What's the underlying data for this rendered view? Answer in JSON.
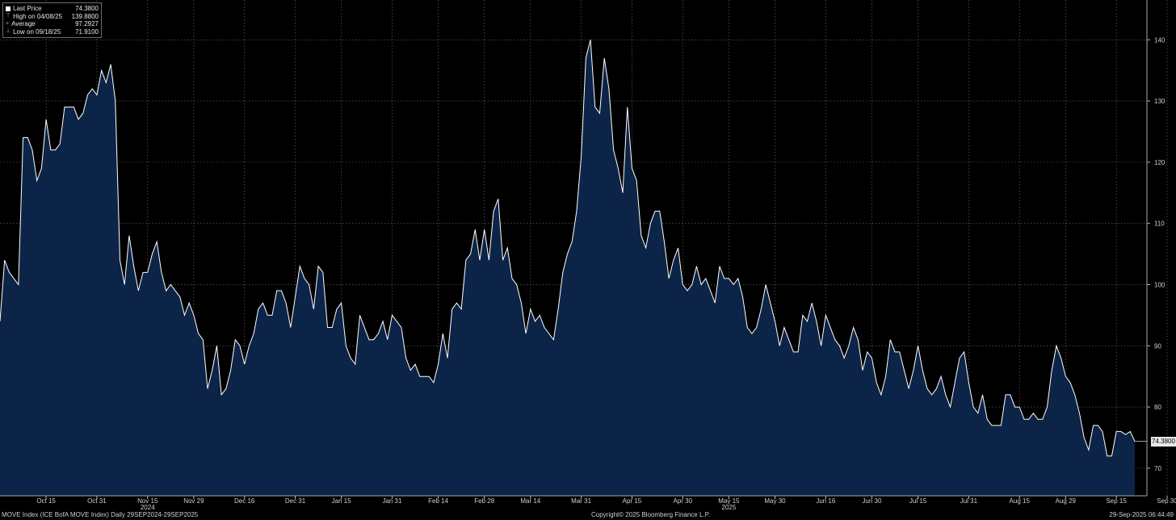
{
  "legend": {
    "last_price_label": "Last Price",
    "last_price_value": "74.3800",
    "high_label": "High on 04/08/25",
    "high_value": "139.8800",
    "average_label": "Average",
    "average_value": "97.2927",
    "low_label": "Low on 09/18/25",
    "low_value": "71.9100"
  },
  "footer": {
    "left": "MOVE Index (ICE BofA MOVE Index)  Daily 29SEP2024-29SEP2025",
    "center": "Copyright© 2025 Bloomberg Finance L.P.",
    "right": "29-Sep-2025 06:44:49"
  },
  "last_value_tag": "74.3800",
  "colors": {
    "background": "#000000",
    "area_fill": "#0c2447",
    "line": "#ffffff",
    "grid": "#6e6e6e",
    "text": "#d8d8d8"
  },
  "chart_data": {
    "type": "area",
    "series": [
      {
        "values": [
          94.0,
          104.0,
          102.0,
          101.0,
          100.0,
          124.0,
          124.0,
          122.0,
          117.0,
          119.0,
          127.0,
          122.0,
          122.0,
          123.0,
          129.0,
          129.0,
          129.0,
          127.0,
          128.0,
          131.0,
          132.0,
          131.0,
          135.0,
          133.0,
          136.0,
          130.0,
          104.0,
          100.0,
          108.0,
          103.0,
          99.0,
          102.0,
          102.0,
          105.0,
          107.0,
          102.0,
          99.0,
          100.0,
          99.0,
          98.0,
          95.0,
          97.0,
          95.0,
          92.0,
          91.0,
          83.0,
          86.0,
          90.0,
          82.0,
          83.0,
          86.0,
          91.0,
          90.0,
          87.0,
          90.0,
          92.0,
          96.0,
          97.0,
          95.0,
          95.0,
          99.0,
          99.0,
          97.0,
          93.0,
          98.0,
          103.0,
          101.0,
          100.0,
          96.0,
          103.0,
          102.0,
          93.0,
          93.0,
          96.0,
          97.0,
          90.0,
          88.0,
          87.0,
          95.0,
          93.0,
          91.0,
          91.0,
          92.0,
          94.0,
          91.0,
          95.0,
          94.0,
          93.0,
          88.0,
          86.0,
          87.0,
          85.0,
          85.0,
          85.0,
          84.0,
          87.0,
          92.0,
          88.0,
          96.0,
          97.0,
          96.0,
          104.0,
          105.0,
          109.0,
          104.0,
          109.0,
          104.0,
          112.0,
          114.0,
          104.0,
          106.0,
          101.0,
          100.0,
          97.0,
          92.0,
          96.0,
          94.0,
          95.0,
          93.0,
          92.0,
          91.0,
          96.0,
          102.0,
          105.0,
          107.0,
          112.0,
          121.0,
          137.0,
          140.0,
          129.0,
          128.0,
          137.0,
          132.0,
          122.0,
          119.0,
          115.0,
          129.0,
          119.0,
          117.0,
          108.0,
          106.0,
          110.0,
          112.0,
          112.0,
          107.0,
          101.0,
          104.0,
          106.0,
          100.0,
          99.0,
          100.0,
          103.0,
          100.0,
          101.0,
          99.0,
          97.0,
          103.0,
          101.0,
          101.0,
          100.0,
          101.0,
          98.0,
          93.0,
          92.0,
          93.0,
          96.0,
          100.0,
          97.0,
          94.0,
          90.0,
          93.0,
          91.0,
          89.0,
          89.0,
          95.0,
          94.0,
          97.0,
          94.0,
          90.0,
          95.0,
          93.0,
          91.0,
          90.0,
          88.0,
          90.0,
          93.0,
          91.0,
          86.0,
          89.0,
          88.0,
          84.0,
          82.0,
          85.0,
          91.0,
          89.0,
          89.0,
          86.0,
          83.0,
          86.0,
          90.0,
          86.0,
          83.0,
          82.0,
          83.0,
          85.0,
          82.0,
          80.0,
          84.0,
          88.0,
          89.0,
          84.0,
          80.0,
          79.0,
          82.0,
          78.0,
          77.0,
          77.0,
          77.0,
          82.0,
          82.0,
          80.0,
          80.0,
          78.0,
          78.0,
          79.0,
          78.0,
          78.0,
          80.0,
          86.0,
          90.0,
          88.0,
          85.0,
          84.0,
          82.0,
          79.0,
          75.0,
          73.0,
          77.0,
          77.0,
          76.0,
          72.0,
          72.0,
          76.0,
          76.0,
          75.5,
          76.0,
          74.38
        ]
      }
    ],
    "x_tick_labels": [
      "Oct 15",
      "Oct 31",
      "Nov 15",
      "Nov 29",
      "Dec 16",
      "Dec 31",
      "Jan 15",
      "Jan 31",
      "Feb 14",
      "Feb 28",
      "Mar 14",
      "Mar 31",
      "Apr 15",
      "Apr 30",
      "May 15",
      "May 30",
      "Jun 16",
      "Jun 30",
      "Jul 15",
      "Jul 31",
      "Aug 15",
      "Aug 29",
      "Sep 15",
      "Sep 30"
    ],
    "x_tick_index": [
      10,
      21,
      32,
      42,
      53,
      64,
      74,
      85,
      95,
      105,
      115,
      126,
      137,
      148,
      158,
      168,
      179,
      189,
      199,
      210,
      221,
      231,
      242,
      253
    ],
    "year_labels": [
      {
        "label": "2024",
        "at_index": 32
      },
      {
        "label": "2025",
        "at_index": 158
      }
    ],
    "y_ticks": [
      70,
      80,
      90,
      100,
      110,
      120,
      130,
      140
    ],
    "ylim": [
      65.5,
      146.5
    ],
    "grid": true,
    "y_axis_side": "right"
  }
}
